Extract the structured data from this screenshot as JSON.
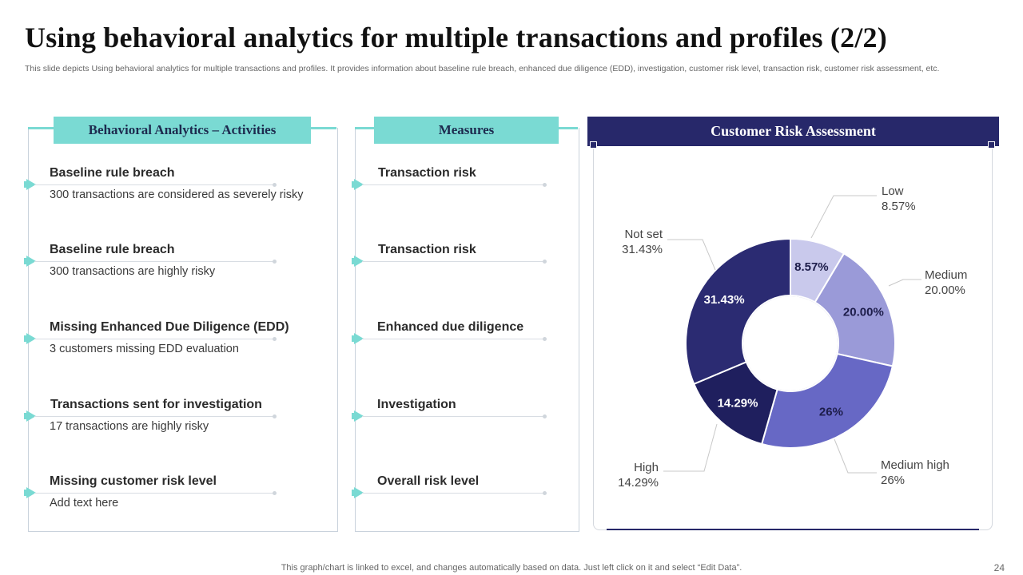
{
  "title": "Using behavioral analytics for multiple transactions and profiles (2/2)",
  "subtitle": "This slide depicts Using behavioral analytics for multiple transactions and profiles. It provides information about baseline rule breach, enhanced due diligence (EDD), investigation, customer risk level, transaction risk, customer risk assessment, etc.",
  "activities": {
    "header": "Behavioral Analytics – Activities",
    "items": [
      {
        "title": "Baseline rule breach",
        "desc": "300 transactions are considered as severely risky"
      },
      {
        "title": "Baseline rule breach",
        "desc": "300 transactions are highly risky"
      },
      {
        "title": "Missing Enhanced Due Diligence (EDD)",
        "desc": "3 customers missing EDD evaluation"
      },
      {
        "title": "Transactions sent for investigation",
        "desc": "17 transactions are highly risky"
      },
      {
        "title": "Missing customer risk level",
        "desc": "Add text here"
      }
    ]
  },
  "measures": {
    "header": "Measures",
    "items": [
      "Transaction risk",
      "Transaction risk",
      "Enhanced due diligence",
      "Investigation",
      "Overall risk level"
    ]
  },
  "risk_assessment": {
    "header": "Customer Risk Assessment"
  },
  "chart_data": {
    "type": "pie",
    "variant": "donut",
    "title": "Customer Risk Assessment",
    "slices": [
      {
        "name": "Low",
        "value": 8.57,
        "label": "8.57%",
        "color": "#c9c9ec"
      },
      {
        "name": "Medium",
        "value": 20.0,
        "label": "20.00%",
        "color": "#9a9ad8"
      },
      {
        "name": "Medium high",
        "value": 26,
        "label": "26%",
        "color": "#6768c5"
      },
      {
        "name": "High",
        "value": 14.29,
        "label": "14.29%",
        "color": "#1f1f5e"
      },
      {
        "name": "Not set",
        "value": 31.43,
        "label": "31.43%",
        "color": "#2b2b72"
      }
    ]
  },
  "footer": "This graph/chart is linked to excel, and changes automatically based on data. Just left click on it and select “Edit Data”.",
  "page_number": "24"
}
